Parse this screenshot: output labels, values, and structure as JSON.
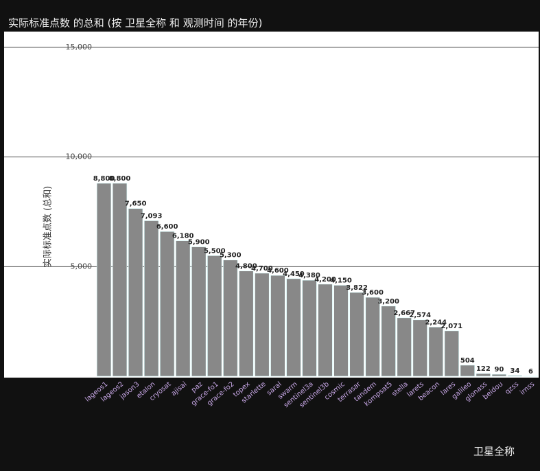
{
  "chart_data": {
    "type": "bar",
    "title": "实际标准点数 的总和 (按 卫星全称 和 观测时间 的年份)",
    "y_label": "实际标准点数 (总和)",
    "x_label": "卫星全称",
    "categories": [
      "lageos1",
      "lageos2",
      "jason3",
      "etalon",
      "cryosat",
      "ajisai",
      "paz",
      "grace-fo1",
      "grace-fo2",
      "topex",
      "starlette",
      "saral",
      "swarm",
      "sentinel3a",
      "sentinel3b",
      "cosmic",
      "terrasar",
      "tandem",
      "kompsat5",
      "stella",
      "larets",
      "beacon",
      "lares",
      "galileo",
      "glonass",
      "beidou",
      "qzss",
      "irnss"
    ],
    "values": [
      8800,
      8800,
      7650,
      7093,
      6600,
      6180,
      5900,
      5500,
      5300,
      4800,
      4700,
      4600,
      4450,
      4380,
      4200,
      4150,
      3822,
      3600,
      3200,
      2667,
      2574,
      2244,
      2071,
      504,
      122,
      90,
      34,
      6
    ],
    "value_labels": [
      "8,800",
      "8,800",
      "7,650",
      "7,093",
      "6,600",
      "6,180",
      "5,900",
      "5,500",
      "5,300",
      "4,800",
      "4,700",
      "4,600",
      "4,450",
      "4,380",
      "4,200",
      "4,150",
      "3,822",
      "3,600",
      "3,200",
      "2,667",
      "2,574",
      "2,244",
      "2,071",
      "504",
      "122",
      "90",
      "34",
      "6"
    ],
    "color": "#888888",
    "ylim": [
      0,
      15500
    ],
    "yticks": [
      {
        "value": 5000,
        "label": "5,000"
      },
      {
        "value": 10000,
        "label": "10,000"
      },
      {
        "value": 15000,
        "label": "15,000"
      }
    ],
    "grid": true
  }
}
